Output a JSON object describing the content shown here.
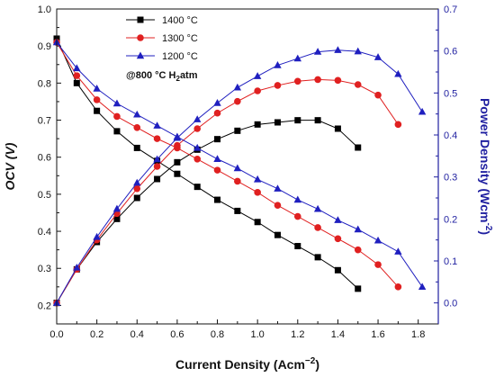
{
  "chart_data": {
    "type": "line",
    "xlabel": {
      "main": "Current Density (Acm",
      "sup": "−2",
      "close": ")"
    },
    "ylabel_left": "OCV (V)",
    "ylabel_right": {
      "main": "Power Density (Wcm",
      "sup": "-2",
      "close": ")"
    },
    "xlim": [
      0.0,
      1.9
    ],
    "ylim_left": [
      0.15,
      1.0
    ],
    "ylim_right": [
      -0.05,
      0.7
    ],
    "x_ticks": [
      "0.0",
      "0.2",
      "0.4",
      "0.6",
      "0.8",
      "1.0",
      "1.2",
      "1.4",
      "1.6",
      "1.8"
    ],
    "y_left_ticks": [
      "0.2",
      "0.3",
      "0.4",
      "0.5",
      "0.6",
      "0.7",
      "0.8",
      "0.9",
      "1.0"
    ],
    "y_right_ticks": [
      "0.0",
      "0.1",
      "0.2",
      "0.3",
      "0.4",
      "0.5",
      "0.6",
      "0.7"
    ],
    "legend_position": "top-left",
    "annotation": {
      "main": "@800 °C H",
      "sub": "2",
      "tail": "atm"
    },
    "series": [
      {
        "name": "1400 °C",
        "color": "#000000",
        "marker": "square",
        "x": [
          0.0,
          0.1,
          0.2,
          0.3,
          0.4,
          0.5,
          0.6,
          0.7,
          0.8,
          0.9,
          1.0,
          1.1,
          1.2,
          1.3,
          1.4,
          1.5
        ],
        "ocv": [
          0.92,
          0.8,
          0.725,
          0.67,
          0.625,
          0.59,
          0.555,
          0.52,
          0.485,
          0.455,
          0.425,
          0.39,
          0.36,
          0.33,
          0.295,
          0.245
        ],
        "power": [
          0.0,
          0.08,
          0.145,
          0.2,
          0.25,
          0.295,
          0.335,
          0.365,
          0.39,
          0.41,
          0.425,
          0.43,
          0.435,
          0.435,
          0.415,
          0.37
        ]
      },
      {
        "name": "1300 °C",
        "color": "#e02020",
        "marker": "circle",
        "x": [
          0.0,
          0.1,
          0.2,
          0.3,
          0.4,
          0.5,
          0.6,
          0.7,
          0.8,
          0.9,
          1.0,
          1.1,
          1.2,
          1.3,
          1.4,
          1.5,
          1.6,
          1.7
        ],
        "ocv": [
          0.91,
          0.82,
          0.755,
          0.71,
          0.68,
          0.65,
          0.625,
          0.595,
          0.565,
          0.535,
          0.505,
          0.47,
          0.44,
          0.41,
          0.38,
          0.35,
          0.31,
          0.25
        ],
        "power": [
          0.0,
          0.08,
          0.15,
          0.213,
          0.272,
          0.325,
          0.375,
          0.415,
          0.452,
          0.48,
          0.505,
          0.518,
          0.528,
          0.532,
          0.53,
          0.52,
          0.495,
          0.425
        ]
      },
      {
        "name": "1200 °C",
        "color": "#1f1fbf",
        "marker": "triangle",
        "x": [
          0.0,
          0.1,
          0.2,
          0.3,
          0.4,
          0.5,
          0.6,
          0.7,
          0.8,
          0.9,
          1.0,
          1.1,
          1.2,
          1.3,
          1.4,
          1.5,
          1.6,
          1.7,
          1.82
        ],
        "ocv": [
          0.91,
          0.84,
          0.785,
          0.745,
          0.715,
          0.685,
          0.655,
          0.625,
          0.595,
          0.57,
          0.54,
          0.515,
          0.485,
          0.46,
          0.43,
          0.405,
          0.375,
          0.345,
          0.25
        ],
        "power": [
          0.0,
          0.084,
          0.157,
          0.224,
          0.286,
          0.342,
          0.393,
          0.437,
          0.476,
          0.513,
          0.54,
          0.566,
          0.582,
          0.598,
          0.602,
          0.599,
          0.585,
          0.545,
          0.455
        ]
      }
    ]
  }
}
